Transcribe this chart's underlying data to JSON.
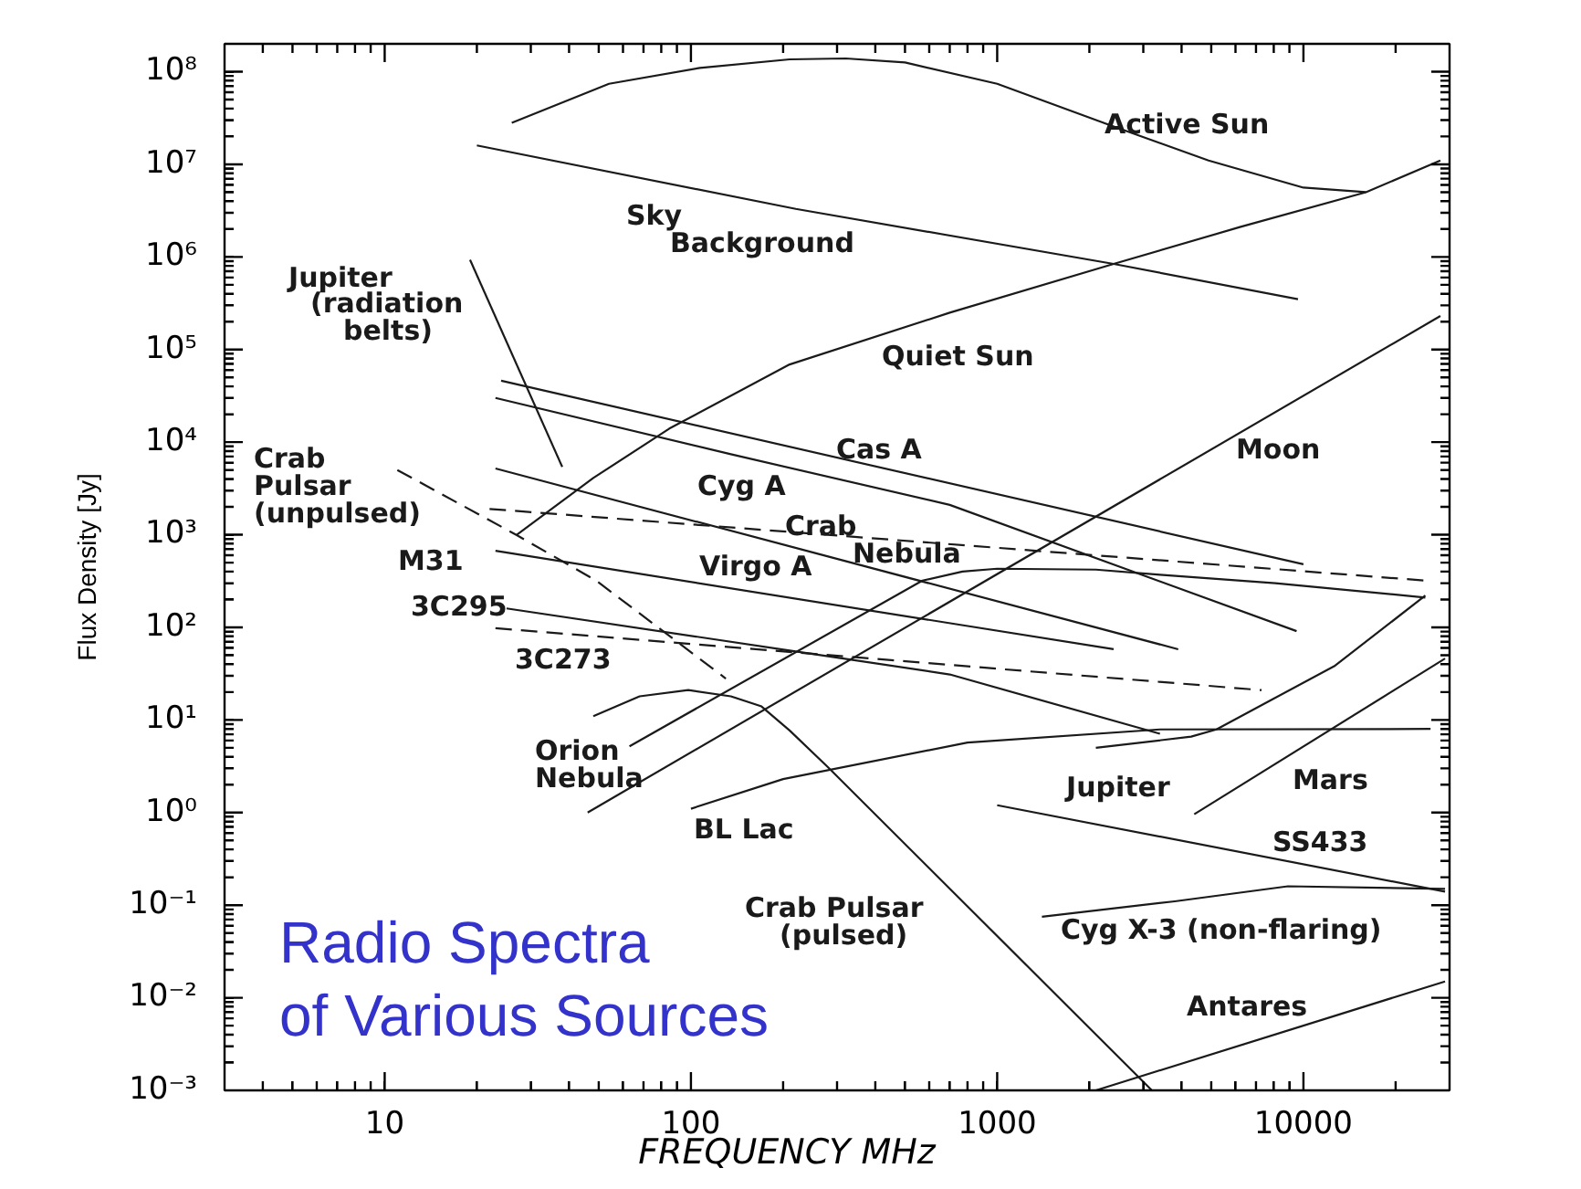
{
  "chart_data": {
    "type": "line",
    "title": "Radio Spectra of Various Sources",
    "xlabel": "FREQUENCY MHz",
    "ylabel": "Flux Density [Jy]",
    "log": "xy",
    "xlim": [
      3,
      30000
    ],
    "ylim": [
      0.001,
      200000000
    ],
    "xticks": [
      {
        "value": 4,
        "label": null
      },
      {
        "value": 5,
        "label": null
      },
      {
        "value": 6,
        "label": null
      },
      {
        "value": 7,
        "label": null
      },
      {
        "value": 8,
        "label": null
      },
      {
        "value": 9,
        "label": null
      },
      10,
      {
        "value": 20,
        "label": null
      },
      {
        "value": 30,
        "label": null
      },
      {
        "value": 40,
        "label": null
      },
      {
        "value": 50,
        "label": null
      },
      {
        "value": 60,
        "label": null
      },
      {
        "value": 70,
        "label": null
      },
      {
        "value": 80,
        "label": null
      },
      {
        "value": 90,
        "label": null
      },
      100,
      {
        "value": 200,
        "label": null
      },
      {
        "value": 300,
        "label": null
      },
      {
        "value": 400,
        "label": null
      },
      {
        "value": 500,
        "label": null
      },
      {
        "value": 600,
        "label": null
      },
      {
        "value": 700,
        "label": null
      },
      {
        "value": 800,
        "label": null
      },
      {
        "value": 900,
        "label": null
      },
      1000,
      {
        "value": 2000,
        "label": null
      },
      {
        "value": 3000,
        "label": null
      },
      {
        "value": 4000,
        "label": null
      },
      {
        "value": 5000,
        "label": null
      },
      {
        "value": 6000,
        "label": null
      },
      {
        "value": 7000,
        "label": null
      },
      {
        "value": 8000,
        "label": null
      },
      {
        "value": 9000,
        "label": null
      },
      10000,
      {
        "value": 20000,
        "label": null
      }
    ],
    "yticks": [
      {
        "value": 0.001,
        "label": "10⁻³"
      },
      {
        "value": 0.002,
        "label": null
      },
      {
        "value": 0.003,
        "label": null
      },
      {
        "value": 0.004,
        "label": null
      },
      {
        "value": 0.005,
        "label": null
      },
      {
        "value": 0.006,
        "label": null
      },
      {
        "value": 0.007,
        "label": null
      },
      {
        "value": 0.008,
        "label": null
      },
      {
        "value": 0.009,
        "label": null
      },
      {
        "value": 0.01,
        "label": "10⁻²"
      },
      {
        "value": 0.02,
        "label": null
      },
      {
        "value": 0.03,
        "label": null
      },
      {
        "value": 0.04,
        "label": null
      },
      {
        "value": 0.05,
        "label": null
      },
      {
        "value": 0.06,
        "label": null
      },
      {
        "value": 0.07,
        "label": null
      },
      {
        "value": 0.08,
        "label": null
      },
      {
        "value": 0.09,
        "label": null
      },
      {
        "value": 0.1,
        "label": "10⁻¹"
      },
      {
        "value": 0.2,
        "label": null
      },
      {
        "value": 0.3,
        "label": null
      },
      {
        "value": 0.4,
        "label": null
      },
      {
        "value": 0.5,
        "label": null
      },
      {
        "value": 0.6,
        "label": null
      },
      {
        "value": 0.7,
        "label": null
      },
      {
        "value": 0.8,
        "label": null
      },
      {
        "value": 0.9,
        "label": null
      },
      {
        "value": 1,
        "label": "10⁰"
      },
      {
        "value": 2,
        "label": null
      },
      {
        "value": 3,
        "label": null
      },
      {
        "value": 4,
        "label": null
      },
      {
        "value": 5,
        "label": null
      },
      {
        "value": 6,
        "label": null
      },
      {
        "value": 7,
        "label": null
      },
      {
        "value": 8,
        "label": null
      },
      {
        "value": 9,
        "label": null
      },
      {
        "value": 10,
        "label": "10¹"
      },
      {
        "value": 20,
        "label": null
      },
      {
        "value": 30,
        "label": null
      },
      {
        "value": 40,
        "label": null
      },
      {
        "value": 50,
        "label": null
      },
      {
        "value": 60,
        "label": null
      },
      {
        "value": 70,
        "label": null
      },
      {
        "value": 80,
        "label": null
      },
      {
        "value": 90,
        "label": null
      },
      {
        "value": 100,
        "label": "10²"
      },
      {
        "value": 200,
        "label": null
      },
      {
        "value": 300,
        "label": null
      },
      {
        "value": 400,
        "label": null
      },
      {
        "value": 500,
        "label": null
      },
      {
        "value": 600,
        "label": null
      },
      {
        "value": 700,
        "label": null
      },
      {
        "value": 800,
        "label": null
      },
      {
        "value": 900,
        "label": null
      },
      {
        "value": 1000,
        "label": "10³"
      },
      {
        "value": 2000,
        "label": null
      },
      {
        "value": 3000,
        "label": null
      },
      {
        "value": 4000,
        "label": null
      },
      {
        "value": 5000,
        "label": null
      },
      {
        "value": 6000,
        "label": null
      },
      {
        "value": 7000,
        "label": null
      },
      {
        "value": 8000,
        "label": null
      },
      {
        "value": 9000,
        "label": null
      },
      {
        "value": 10000,
        "label": "10⁴"
      },
      {
        "value": 20000,
        "label": null
      },
      {
        "value": 30000,
        "label": null
      },
      {
        "value": 40000,
        "label": null
      },
      {
        "value": 50000,
        "label": null
      },
      {
        "value": 60000,
        "label": null
      },
      {
        "value": 70000,
        "label": null
      },
      {
        "value": 80000,
        "label": null
      },
      {
        "value": 90000,
        "label": null
      },
      {
        "value": 100000,
        "label": "10⁵"
      },
      {
        "value": 200000,
        "label": null
      },
      {
        "value": 300000,
        "label": null
      },
      {
        "value": 400000,
        "label": null
      },
      {
        "value": 500000,
        "label": null
      },
      {
        "value": 600000,
        "label": null
      },
      {
        "value": 700000,
        "label": null
      },
      {
        "value": 800000,
        "label": null
      },
      {
        "value": 900000,
        "label": null
      },
      {
        "value": 1000000,
        "label": "10⁶"
      },
      {
        "value": 2000000,
        "label": null
      },
      {
        "value": 3000000,
        "label": null
      },
      {
        "value": 4000000,
        "label": null
      },
      {
        "value": 5000000,
        "label": null
      },
      {
        "value": 6000000,
        "label": null
      },
      {
        "value": 7000000,
        "label": null
      },
      {
        "value": 8000000,
        "label": null
      },
      {
        "value": 9000000,
        "label": null
      },
      {
        "value": 10000000,
        "label": "10⁷"
      },
      {
        "value": 20000000,
        "label": null
      },
      {
        "value": 30000000,
        "label": null
      },
      {
        "value": 40000000,
        "label": null
      },
      {
        "value": 50000000,
        "label": null
      },
      {
        "value": 60000000,
        "label": null
      },
      {
        "value": 70000000,
        "label": null
      },
      {
        "value": 80000000,
        "label": null
      },
      {
        "value": 90000000,
        "label": null
      },
      {
        "value": 100000000,
        "label": "10⁸"
      }
    ],
    "grid": false,
    "legend": false,
    "marker": "none",
    "line_style": "solid",
    "series": [
      {
        "name": "Active Sun",
        "color": "#1a1a1a",
        "x": [
          26,
          54,
          107,
          210,
          320,
          500,
          1000,
          2300,
          4900,
          10000,
          16000
        ],
        "values": [
          28000000,
          74000000,
          110000000,
          136000000,
          139000000,
          126000000,
          74000000,
          27000000,
          11000000,
          5600000,
          5000000
        ]
      },
      {
        "name": "Sky Background",
        "color": "#1a1a1a",
        "x": [
          20,
          220,
          2400,
          9600
        ],
        "values": [
          16000000,
          3300000,
          840000,
          350000
        ]
      },
      {
        "name": "Quiet Sun",
        "color": "#1a1a1a",
        "x": [
          27,
          48,
          85,
          210,
          700,
          2400,
          6200,
          16000,
          28000
        ],
        "values": [
          1000,
          4100,
          14000,
          69000,
          250000,
          840000,
          2100000,
          5000000,
          11000000
        ]
      },
      {
        "name": "Jupiter (radiation belts)",
        "color": "#1a1a1a",
        "x": [
          19,
          38
        ],
        "values": [
          930000,
          5400
        ]
      },
      {
        "name": "Cas A",
        "color": "#1a1a1a",
        "x": [
          24,
          10000
        ],
        "values": [
          46000,
          480
        ]
      },
      {
        "name": "Cyg A",
        "color": "#1a1a1a",
        "x": [
          23,
          135,
          700,
          9500
        ],
        "values": [
          30000,
          7400,
          2100,
          91
        ]
      },
      {
        "name": "Crab Nebula",
        "color": "#1a1a1a",
        "line_style": "dashed",
        "x": [
          22,
          25000
        ],
        "values": [
          1900,
          320
        ]
      },
      {
        "name": "Virgo A",
        "color": "#1a1a1a",
        "x": [
          23,
          3900
        ],
        "values": [
          5200,
          58
        ]
      },
      {
        "name": "M31",
        "color": "#1a1a1a",
        "x": [
          23,
          2400
        ],
        "values": [
          670,
          58
        ]
      },
      {
        "name": "3C295",
        "color": "#1a1a1a",
        "x": [
          25,
          220,
          700,
          3400
        ],
        "values": [
          160,
          55,
          31,
          7.1
        ]
      },
      {
        "name": "3C273",
        "color": "#1a1a1a",
        "line_style": "dashed",
        "x": [
          23,
          7300
        ],
        "values": [
          98,
          21
        ]
      },
      {
        "name": "Crab Pulsar (unpulsed)",
        "color": "#1a1a1a",
        "line_style": "dashed",
        "x": [
          11,
          27,
          49,
          130
        ],
        "values": [
          5000,
          990,
          320,
          28
        ]
      },
      {
        "name": "Orion Nebula",
        "color": "#1a1a1a",
        "x": [
          63,
          570,
          770,
          1000,
          2100,
          3400,
          8100,
          25000
        ],
        "values": [
          5.2,
          320,
          400,
          430,
          420,
          370,
          300,
          210
        ]
      },
      {
        "name": "Crab Pulsar (pulsed)",
        "color": "#1a1a1a",
        "x": [
          48,
          68,
          98,
          135,
          170,
          210,
          280,
          3200
        ],
        "values": [
          11,
          18,
          21,
          18,
          14,
          7.7,
          3.1,
          0.001
        ]
      },
      {
        "name": "BL Lac",
        "color": "#1a1a1a",
        "x": [
          100,
          200,
          800,
          3400,
          26000
        ],
        "values": [
          1.1,
          2.3,
          5.7,
          7.9,
          8
        ]
      },
      {
        "name": "Moon",
        "color": "#1a1a1a",
        "x": [
          46,
          28000
        ],
        "values": [
          1,
          230000
        ]
      },
      {
        "name": "Jupiter",
        "color": "#1a1a1a",
        "x": [
          2100,
          4300,
          5200,
          8000,
          12600,
          25000
        ],
        "values": [
          5,
          6.6,
          7.9,
          17,
          38,
          220
        ]
      },
      {
        "name": "Mars",
        "color": "#1a1a1a",
        "x": [
          4400,
          29000
        ],
        "values": [
          0.96,
          46
        ]
      },
      {
        "name": "SS433",
        "color": "#1a1a1a",
        "x": [
          1000,
          29000
        ],
        "values": [
          1.2,
          0.14
        ]
      },
      {
        "name": "Cyg X-3 (non-flaring)",
        "color": "#1a1a1a",
        "x": [
          1400,
          3800,
          8900,
          29000
        ],
        "values": [
          0.075,
          0.11,
          0.16,
          0.15
        ]
      },
      {
        "name": "Antares",
        "color": "#1a1a1a",
        "x": [
          2100,
          29000
        ],
        "values": [
          0.001,
          0.015
        ]
      }
    ]
  }
}
